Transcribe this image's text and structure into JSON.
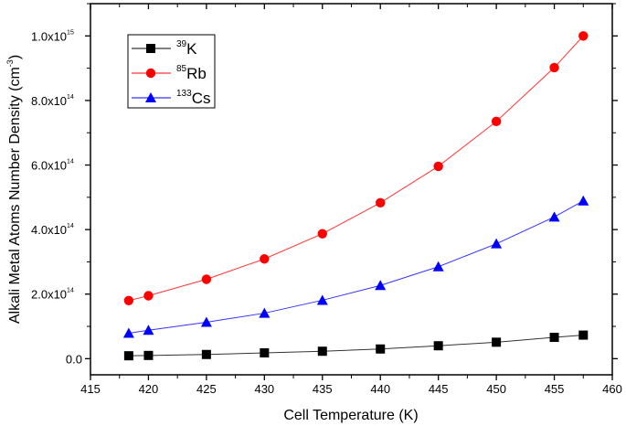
{
  "chart_data": {
    "type": "line",
    "xlabel": "Cell Temperature (K)",
    "ylabel": "Alkali Metal Atoms Number Density (cm",
    "ylabel_sup": "-3",
    "ylabel_end": ")",
    "xlim": [
      415,
      460
    ],
    "ylim": [
      -50000000000000.0,
      1100000000000000.0
    ],
    "x_ticks": [
      {
        "v": 415,
        "label": "415"
      },
      {
        "v": 420,
        "label": "420"
      },
      {
        "v": 425,
        "label": "425"
      },
      {
        "v": 430,
        "label": "430"
      },
      {
        "v": 435,
        "label": "435"
      },
      {
        "v": 440,
        "label": "440"
      },
      {
        "v": 445,
        "label": "445"
      },
      {
        "v": 450,
        "label": "450"
      },
      {
        "v": 455,
        "label": "455"
      },
      {
        "v": 460,
        "label": "460"
      }
    ],
    "y_ticks": [
      {
        "v": 0,
        "label": "0.0",
        "exp": ""
      },
      {
        "v": 200000000000000.0,
        "label": "2.0x10",
        "exp": "14"
      },
      {
        "v": 400000000000000.0,
        "label": "4.0x10",
        "exp": "14"
      },
      {
        "v": 600000000000000.0,
        "label": "6.0x10",
        "exp": "14"
      },
      {
        "v": 800000000000000.0,
        "label": "8.0x10",
        "exp": "14"
      },
      {
        "v": 1000000000000000.0,
        "label": "1.0x10",
        "exp": "15"
      }
    ],
    "grid": false,
    "legend_position": "top-left",
    "x": [
      418.3,
      420,
      425,
      430,
      435,
      440,
      445,
      450,
      455,
      457.5
    ],
    "series": [
      {
        "name": "K",
        "sup": "39",
        "color": "#000000",
        "marker": "square",
        "values": [
          9000000000000.0,
          10000000000000.0,
          13000000000000.0,
          18000000000000.0,
          23000000000000.0,
          30000000000000.0,
          40000000000000.0,
          51000000000000.0,
          66000000000000.0,
          73000000000000.0
        ]
      },
      {
        "name": "Rb",
        "sup": "85",
        "color": "#ff0000",
        "marker": "circle",
        "values": [
          180000000000000.0,
          195000000000000.0,
          246000000000000.0,
          309000000000000.0,
          387000000000000.0,
          483000000000000.0,
          596000000000000.0,
          735000000000000.0,
          902000000000000.0,
          1000000000000000.0
        ]
      },
      {
        "name": "Cs",
        "sup": "133",
        "color": "#0000ff",
        "marker": "triangle",
        "values": [
          79000000000000.0,
          88000000000000.0,
          113000000000000.0,
          141000000000000.0,
          181000000000000.0,
          227000000000000.0,
          285000000000000.0,
          356000000000000.0,
          439000000000000.0,
          489000000000000.0
        ]
      }
    ]
  }
}
